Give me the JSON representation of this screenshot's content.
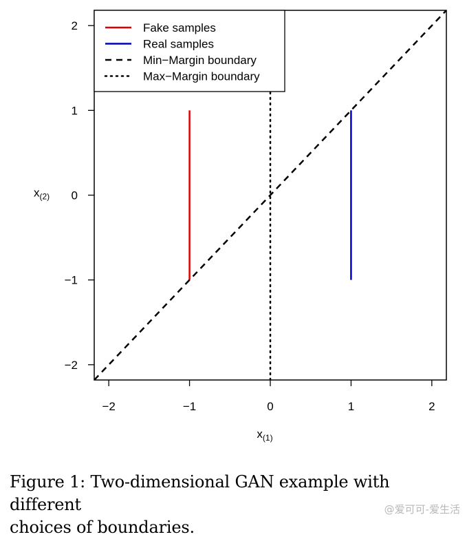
{
  "chart_data": {
    "type": "line",
    "xlabel": "x",
    "xlabel_sub": "(1)",
    "ylabel": "x",
    "ylabel_sub": "(2)",
    "xlim": [
      -2.18,
      2.18
    ],
    "ylim": [
      -2.18,
      2.18
    ],
    "xticks": [
      -2,
      -1,
      0,
      1,
      2
    ],
    "yticks": [
      -2,
      -1,
      0,
      1,
      2
    ],
    "tick_labels": [
      "−2",
      "−1",
      "0",
      "1",
      "2"
    ],
    "grid": false,
    "legend_position": "top-left",
    "series": [
      {
        "name": "Fake samples",
        "color": "#dd0000",
        "style": "solid",
        "x": [
          -1,
          -1
        ],
        "y": [
          -1,
          1
        ]
      },
      {
        "name": "Real samples",
        "color": "#0000bb",
        "style": "solid",
        "x": [
          1,
          1
        ],
        "y": [
          -1,
          1
        ]
      },
      {
        "name": "Min−Margin boundary",
        "color": "#000000",
        "style": "dashed",
        "x": [
          -2.18,
          2.18
        ],
        "y": [
          -2.18,
          2.18
        ]
      },
      {
        "name": "Max−Margin boundary",
        "color": "#000000",
        "style": "dotted",
        "x": [
          0,
          0
        ],
        "y": [
          -2.18,
          2.18
        ]
      }
    ]
  },
  "caption": {
    "line1": "Figure 1: Two-dimensional GAN example with different",
    "line2": "choices of boundaries."
  },
  "watermark": "@爱可可-爱生活"
}
